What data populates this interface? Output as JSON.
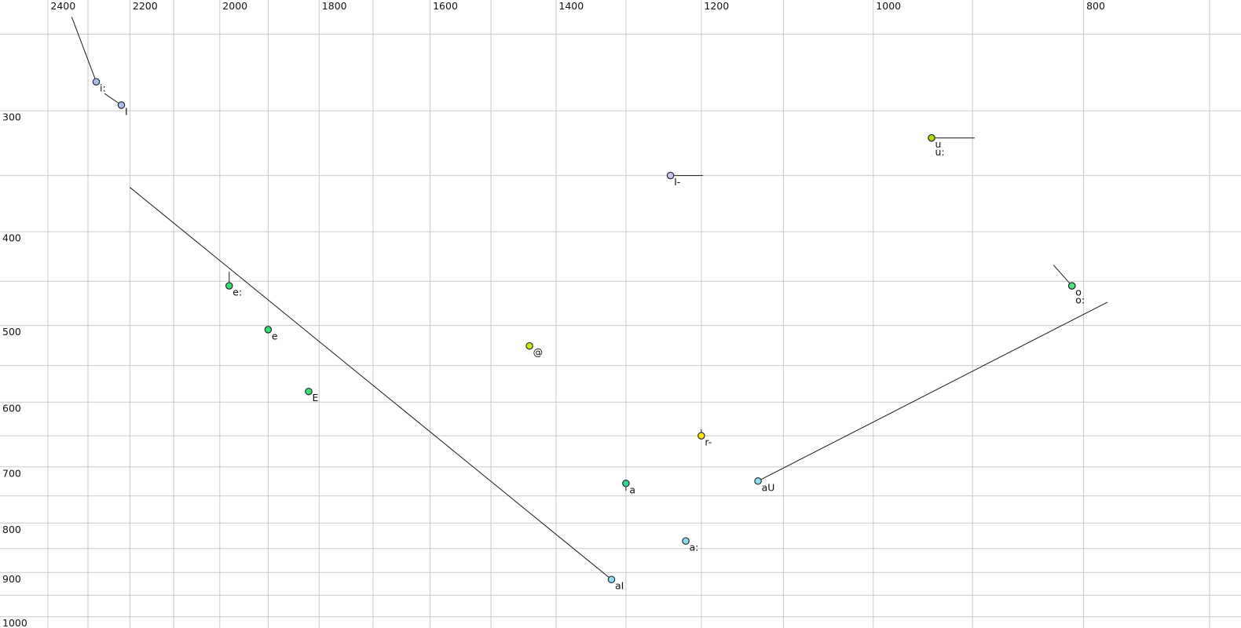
{
  "chart_data": {
    "type": "scatter",
    "title": "",
    "xlabel": "",
    "ylabel": "",
    "description": "Vowel formant plot: F2 (Hz) on top axis decreasing rightward, F1 (Hz) on left axis increasing downward, both log-scaled. Colored dots mark vowel targets labelled in SAMPA; thin black lines are formant trajectory tails.",
    "x_axis": {
      "orientation": "top",
      "scale": "log",
      "reversed": true,
      "view_min": 677,
      "view_max": 2525,
      "grid_from": 700,
      "grid_to": 2400,
      "grid_step": 100,
      "tick_values": [
        2400,
        2200,
        2000,
        1800,
        1600,
        1400,
        1200,
        1000,
        800
      ],
      "tick_labels": [
        "2400",
        "2200",
        "2000",
        "1800",
        "1600",
        "1400",
        "1200",
        "1000",
        "800"
      ]
    },
    "y_axis": {
      "orientation": "left",
      "scale": "log",
      "view_min": 230.5,
      "view_max": 1027,
      "grid_from": 250,
      "grid_to": 1000,
      "grid_step": 50,
      "tick_values": [
        300,
        400,
        500,
        600,
        700,
        800,
        900,
        1000
      ],
      "tick_labels": [
        "300",
        "400",
        "500",
        "600",
        "700",
        "800",
        "900",
        "1000"
      ]
    },
    "grid": true,
    "legend": "none",
    "points": [
      {
        "label": "i:",
        "f2": 2280,
        "f1": 280,
        "color": "#a9bde9",
        "tail": {
          "f2": 2340,
          "f1": 240
        }
      },
      {
        "label": "I",
        "f2": 2220,
        "f1": 296,
        "color": "#a9bde9",
        "tail": {
          "f2": 2260,
          "f1": 288
        }
      },
      {
        "label": "u",
        "f2": 940,
        "f1": 320,
        "color": "#a9dc00"
      },
      {
        "label": "u:",
        "f2": 940,
        "f1": 320,
        "color": "#a9dc00",
        "tail": {
          "f2": 898,
          "f1": 320
        },
        "label_row": 2
      },
      {
        "label": "I-",
        "f2": 1240,
        "f1": 350,
        "color": "#c7c7ea",
        "tail": {
          "f2": 1198,
          "f1": 350
        }
      },
      {
        "label": "e:",
        "f2": 1980,
        "f1": 455,
        "color": "#36df69",
        "tail": {
          "f2": 1980,
          "f1": 440
        }
      },
      {
        "label": "e",
        "f2": 1900,
        "f1": 505,
        "color": "#36df69"
      },
      {
        "label": "E",
        "f2": 1820,
        "f1": 585,
        "color": "#36df69"
      },
      {
        "label": "@",
        "f2": 1440,
        "f1": 525,
        "color": "#c8e814"
      },
      {
        "label": "r-",
        "f2": 1200,
        "f1": 650,
        "color": "#ffe80a",
        "tail": {
          "f2": 1200,
          "f1": 640
        }
      },
      {
        "label": "a",
        "f2": 1300,
        "f1": 728,
        "color": "#31d98d",
        "tail": {
          "f2": 1300,
          "f1": 741
        }
      },
      {
        "label": "aU",
        "f2": 1130,
        "f1": 724,
        "color": "#8bdce9",
        "tail": {
          "f2": 780,
          "f1": 473
        }
      },
      {
        "label": "a:",
        "f2": 1220,
        "f1": 835,
        "color": "#8bdce9"
      },
      {
        "label": "aI",
        "f2": 1320,
        "f1": 915,
        "color": "#8bdce9",
        "tail": {
          "f2": 2200,
          "f1": 360
        }
      },
      {
        "label": "o",
        "f2": 810,
        "f1": 455,
        "color": "#4de87b"
      },
      {
        "label": "o:",
        "f2": 810,
        "f1": 455,
        "color": "#4de87b",
        "tail": {
          "f2": 826,
          "f1": 433
        },
        "label_row": 2
      }
    ],
    "style": {
      "background": "#ffffff",
      "gridline_color": "#c9c9c9",
      "tick_text_color": "#111111",
      "point_label_color": "#111111",
      "tail_color": "#1b1b1b",
      "dot_outline_color": "#1c1c30",
      "dot_radius": 4.2,
      "tick_font_size": 12.5,
      "label_font_size": 12.5
    }
  }
}
